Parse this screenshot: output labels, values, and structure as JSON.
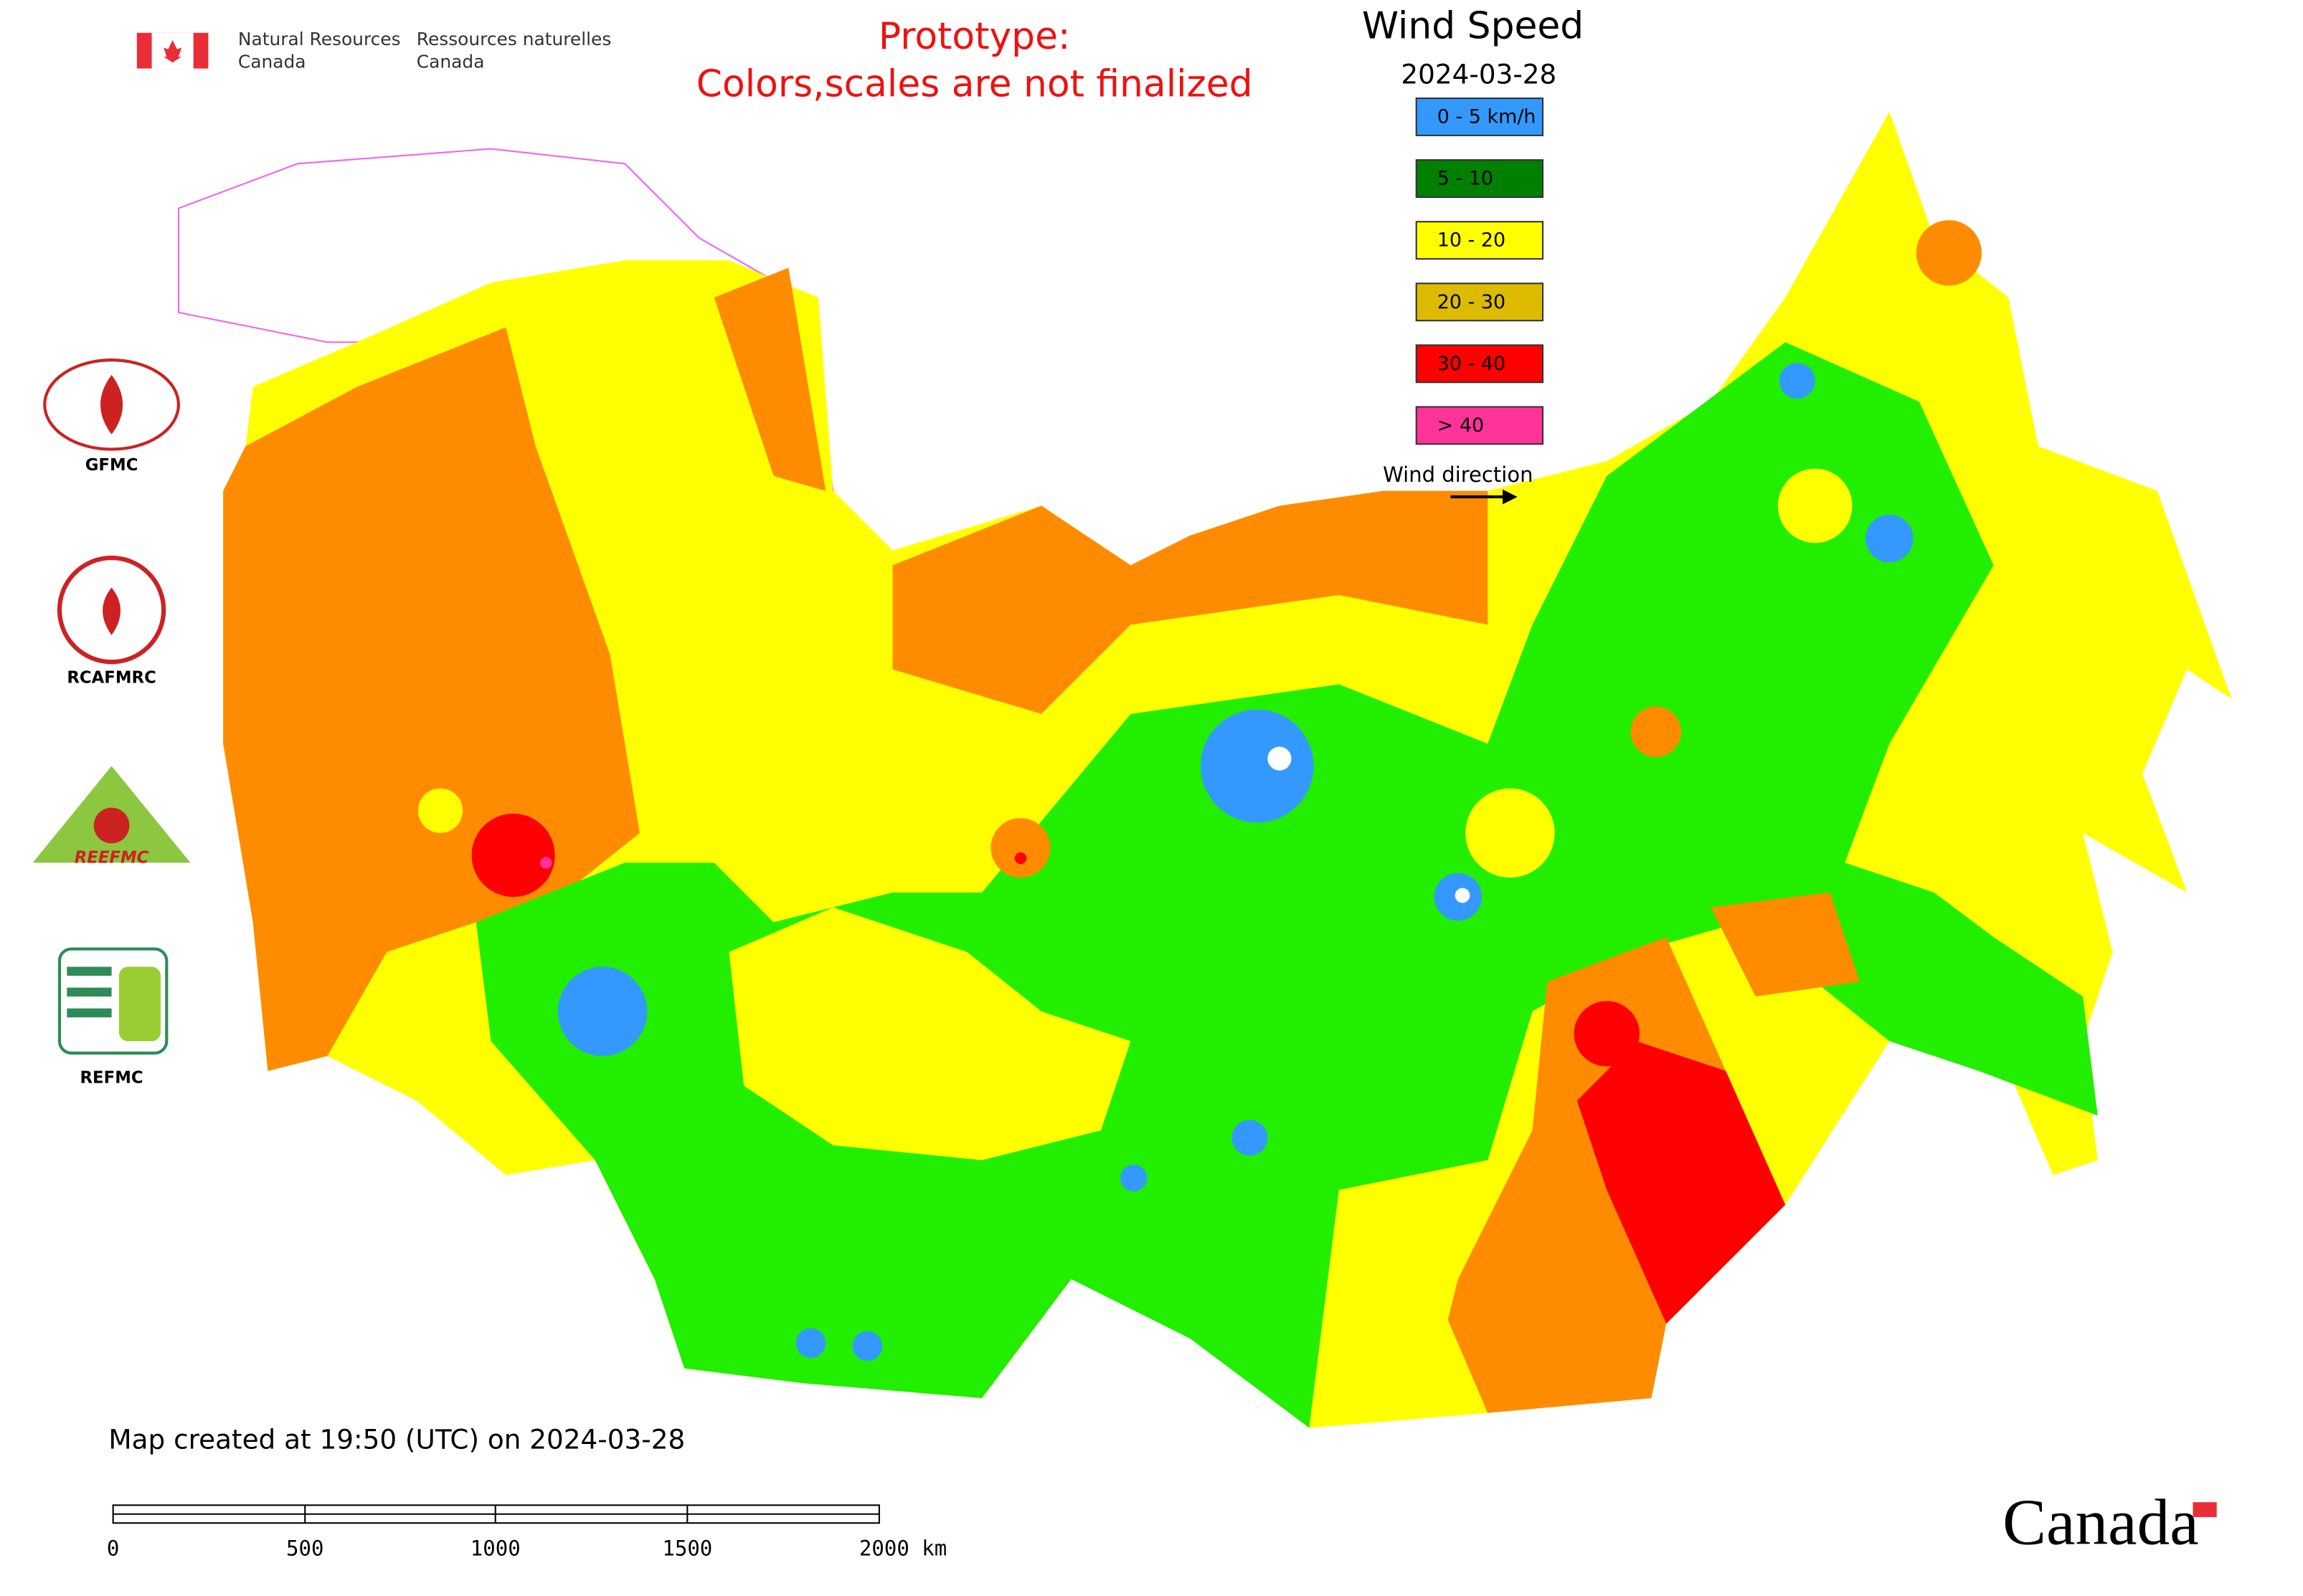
{
  "header": {
    "agency_en_line1": "Natural Resources",
    "agency_en_line2": "Canada",
    "agency_fr_line1": "Ressources naturelles",
    "agency_fr_line2": "Canada"
  },
  "notice": {
    "line1": "Prototype:",
    "line2": "Colors,scales are not finalized"
  },
  "legend": {
    "title": "Wind Speed",
    "date": "2024-03-28",
    "items": [
      {
        "label": "0 - 5 km/h",
        "color": "#3399ff"
      },
      {
        "label": "5 - 10",
        "color": "#008000"
      },
      {
        "label": "10 - 20",
        "color": "#ffff00"
      },
      {
        "label": "20 - 30",
        "color": "#ddbb00"
      },
      {
        "label": "30 - 40",
        "color": "#ff0000"
      },
      {
        "label": "> 40",
        "color": "#ff3399"
      }
    ],
    "direction_label": "Wind direction"
  },
  "logos": [
    "GFMC",
    "RCAFMRC",
    "REEFMC",
    "REFMC"
  ],
  "footer": {
    "created": "Map created at 19:50 (UTC) on 2024-03-28",
    "scale_labels": [
      "0",
      "500",
      "1000",
      "1500",
      "2000 km"
    ],
    "wordmark": "Canada"
  }
}
